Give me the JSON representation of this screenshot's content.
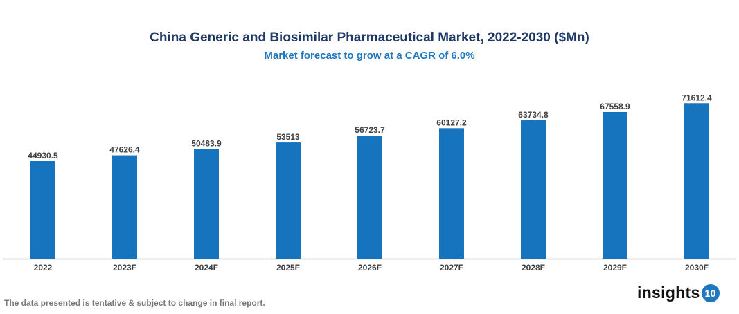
{
  "chart_data": {
    "type": "bar",
    "title": "China Generic and Biosimilar Pharmaceutical Market, 2022-2030 ($Mn)",
    "subtitle": "Market forecast to grow at a CAGR of 6.0%",
    "categories": [
      "2022",
      "2023F",
      "2024F",
      "2025F",
      "2026F",
      "2027F",
      "2028F",
      "2029F",
      "2030F"
    ],
    "values": [
      44930.5,
      47626.4,
      50483.9,
      53513,
      56723.7,
      60127.2,
      63734.8,
      67558.9,
      71612.4
    ],
    "labels": [
      "44930.5",
      "47626.4",
      "50483.9",
      "53513",
      "56723.7",
      "60127.2",
      "63734.8",
      "67558.9",
      "71612.4"
    ],
    "ylim": [
      0,
      80000
    ],
    "grid": false,
    "legend": "none",
    "bar_color": "#1674bf"
  },
  "footer": {
    "note": "The data presented is tentative & subject to change in final report."
  },
  "logo": {
    "text": "insights",
    "badge": "10"
  }
}
